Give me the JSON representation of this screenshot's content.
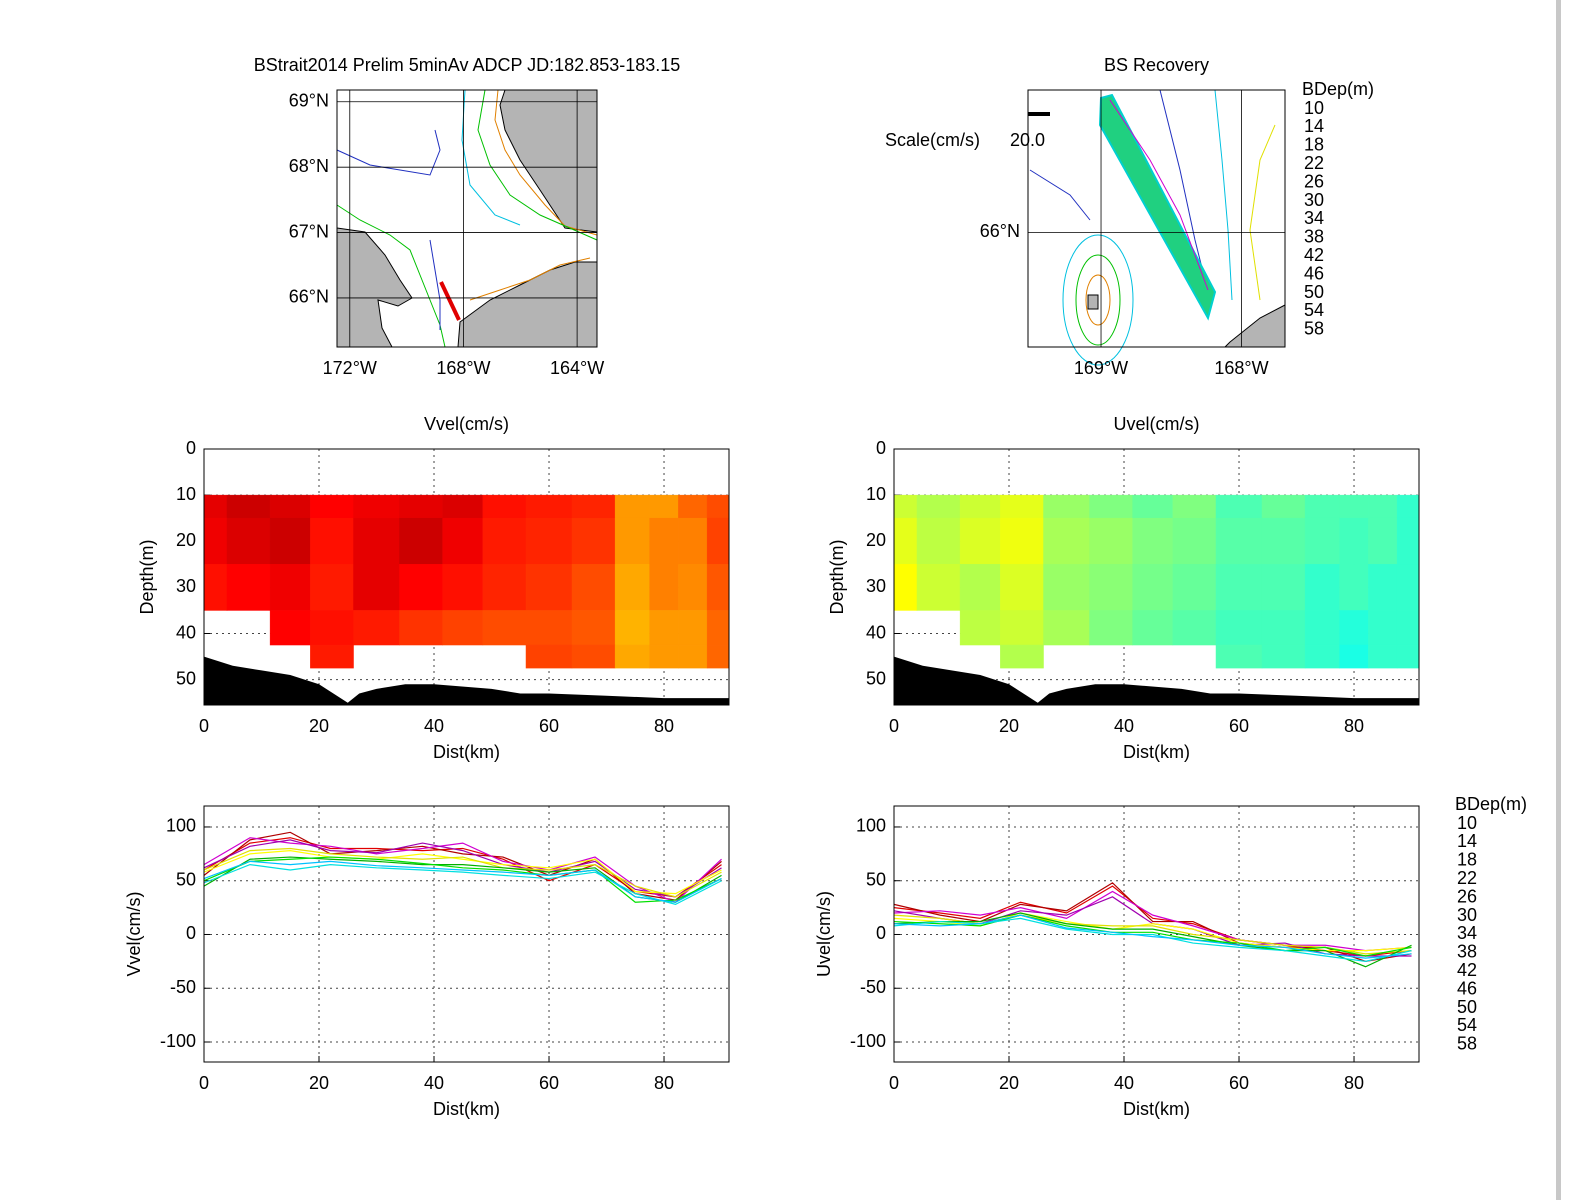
{
  "chart_data": [
    {
      "type": "map",
      "title": "BStrait2014 Prelim 5minAv ADCP JD:182.853-183.15",
      "xlim": [
        -172.45,
        -163.3
      ],
      "ylim": [
        65.25,
        69.18
      ],
      "xticks": [
        {
          "value": -172,
          "label": "172°W"
        },
        {
          "value": -168,
          "label": "168°W"
        },
        {
          "value": -164,
          "label": "164°W"
        }
      ],
      "yticks": [
        {
          "value": 66,
          "label": "66°N"
        },
        {
          "value": 67,
          "label": "67°N"
        },
        {
          "value": 68,
          "label": "68°N"
        },
        {
          "value": 69,
          "label": "69°N"
        }
      ]
    },
    {
      "type": "map",
      "title": "BS Recovery",
      "xlim": [
        -169.52,
        -167.69
      ],
      "ylim": [
        65.67,
        66.41
      ],
      "xticks": [
        {
          "value": -169,
          "label": "169°W"
        },
        {
          "value": -168,
          "label": "168°W"
        }
      ],
      "yticks": [
        {
          "value": 66,
          "label": "66°N"
        }
      ],
      "scale_title": "Scale(cm/s)",
      "scale_value": {
        "value": 20,
        "label": "20.0"
      },
      "legend_title": "BDep(m)"
    },
    {
      "type": "contour",
      "title": "Vvel(cm/s)",
      "xlabel": "Dist(km)",
      "ylabel": "Depth(m)",
      "xlim": [
        0,
        91.3
      ],
      "ylim": [
        55.5,
        0
      ],
      "xticks": [
        0,
        20,
        40,
        60,
        80
      ],
      "yticks": [
        0,
        10,
        20,
        30,
        40,
        50
      ],
      "grid": true,
      "clim": [
        -100,
        100
      ],
      "x": [
        0,
        8,
        15,
        22,
        30,
        38,
        45,
        52,
        60,
        68,
        75,
        80,
        85,
        90
      ],
      "depth": [
        10,
        20,
        30,
        40,
        45
      ],
      "z": [
        [
          80,
          85,
          82,
          75,
          78,
          80,
          82,
          72,
          70,
          68,
          45,
          45,
          55,
          60
        ],
        [
          78,
          82,
          85,
          72,
          80,
          85,
          78,
          70,
          68,
          65,
          45,
          50,
          50,
          62
        ],
        [
          72,
          75,
          78,
          70,
          80,
          75,
          72,
          68,
          65,
          60,
          42,
          50,
          48,
          58
        ],
        [
          null,
          null,
          75,
          72,
          70,
          65,
          62,
          60,
          60,
          58,
          40,
          45,
          45,
          55
        ],
        [
          null,
          null,
          null,
          70,
          null,
          null,
          null,
          null,
          62,
          60,
          42,
          45,
          45,
          55
        ]
      ],
      "bottom": {
        "x": [
          0,
          5,
          10,
          15,
          20,
          25,
          27,
          30,
          35,
          40,
          50,
          55,
          60,
          70,
          80,
          91.3
        ],
        "depth": [
          45,
          47,
          48,
          49,
          51,
          55,
          53,
          52,
          51,
          51,
          52,
          53,
          53,
          53.5,
          54,
          54
        ]
      }
    },
    {
      "type": "contour",
      "title": "Uvel(cm/s)",
      "xlabel": "Dist(km)",
      "ylabel": "Depth(m)",
      "xlim": [
        0,
        91.3
      ],
      "ylim": [
        55.5,
        0
      ],
      "xticks": [
        0,
        20,
        40,
        60,
        80
      ],
      "yticks": [
        0,
        10,
        20,
        30,
        40,
        50
      ],
      "grid": true,
      "clim": [
        -100,
        100
      ],
      "x": [
        0,
        8,
        15,
        22,
        30,
        38,
        45,
        52,
        60,
        68,
        75,
        80,
        85,
        90
      ],
      "depth": [
        10,
        20,
        30,
        40,
        45
      ],
      "z": [
        [
          15,
          10,
          15,
          20,
          5,
          0,
          -5,
          0,
          -10,
          -5,
          -10,
          -10,
          -10,
          -15
        ],
        [
          20,
          12,
          18,
          22,
          8,
          5,
          0,
          -2,
          -8,
          -8,
          -10,
          -12,
          -10,
          -15
        ],
        [
          25,
          15,
          10,
          18,
          5,
          2,
          -2,
          -5,
          -10,
          -10,
          -15,
          -12,
          -15,
          -15
        ],
        [
          null,
          null,
          12,
          15,
          8,
          0,
          -5,
          -8,
          -12,
          -12,
          -15,
          -18,
          -15,
          -15
        ],
        [
          null,
          null,
          null,
          10,
          null,
          null,
          null,
          null,
          -10,
          -12,
          -15,
          -20,
          -15,
          -15
        ]
      ],
      "bottom": {
        "x": [
          0,
          5,
          10,
          15,
          20,
          25,
          27,
          30,
          35,
          40,
          50,
          55,
          60,
          70,
          80,
          91.3
        ],
        "depth": [
          45,
          47,
          48,
          49,
          51,
          55,
          53,
          52,
          51,
          51,
          52,
          53,
          53,
          53.5,
          54,
          54
        ]
      }
    },
    {
      "type": "line",
      "xlabel": "Dist(km)",
      "ylabel": "Vvel(cm/s)",
      "xlim": [
        0,
        91.3
      ],
      "ylim": [
        -118.6,
        119.5
      ],
      "xticks": [
        0,
        20,
        40,
        60,
        80
      ],
      "yticks": [
        -100,
        -50,
        0,
        50,
        100
      ],
      "grid": true,
      "x": [
        0,
        8,
        15,
        22,
        30,
        38,
        45,
        52,
        60,
        68,
        75,
        82,
        90
      ],
      "series": [
        {
          "name": "10",
          "color": "#e00000",
          "values": [
            60,
            85,
            90,
            80,
            80,
            78,
            80,
            70,
            50,
            65,
            40,
            35,
            65
          ]
        },
        {
          "name": "14",
          "color": "#b00000",
          "values": [
            55,
            88,
            95,
            75,
            78,
            82,
            75,
            72,
            55,
            70,
            38,
            32,
            68
          ]
        },
        {
          "name": "18",
          "color": "#d000d0",
          "values": [
            65,
            90,
            85,
            82,
            75,
            80,
            85,
            68,
            60,
            72,
            45,
            30,
            70
          ]
        },
        {
          "name": "22",
          "color": "#a000b0",
          "values": [
            62,
            82,
            88,
            78,
            76,
            85,
            78,
            65,
            58,
            68,
            42,
            35,
            62
          ]
        },
        {
          "name": "26",
          "color": "#ffff00",
          "values": [
            58,
            75,
            78,
            72,
            70,
            75,
            70,
            65,
            62,
            70,
            40,
            38,
            60
          ]
        },
        {
          "name": "30",
          "color": "#e0e000",
          "values": [
            60,
            78,
            80,
            75,
            72,
            70,
            72,
            62,
            60,
            65,
            45,
            35,
            58
          ]
        },
        {
          "name": "34",
          "color": "#00b000",
          "values": [
            45,
            70,
            72,
            70,
            68,
            65,
            65,
            62,
            58,
            62,
            35,
            30,
            55
          ]
        },
        {
          "name": "38",
          "color": "#00e000",
          "values": [
            50,
            68,
            70,
            72,
            70,
            66,
            62,
            60,
            55,
            60,
            30,
            32,
            52
          ]
        },
        {
          "name": "42",
          "color": "#00e0e0",
          "values": [
            48,
            65,
            60,
            65,
            62,
            60,
            58,
            55,
            52,
            58,
            38,
            28,
            50
          ]
        },
        {
          "name": "46",
          "color": "#00c0ff",
          "values": [
            52,
            68,
            65,
            68,
            64,
            62,
            60,
            58,
            55,
            60,
            35,
            30,
            52
          ]
        },
        {
          "name": "50",
          "color": "#0000c0",
          "values": [
            null,
            null,
            null,
            null,
            null,
            null,
            null,
            null,
            null,
            null,
            null,
            null,
            null
          ]
        },
        {
          "name": "54",
          "color": "#000080",
          "values": [
            null,
            null,
            null,
            null,
            null,
            null,
            null,
            null,
            null,
            null,
            null,
            null,
            null
          ]
        },
        {
          "name": "58",
          "color": "#000000",
          "values": [
            null,
            null,
            null,
            null,
            null,
            null,
            null,
            null,
            null,
            null,
            null,
            null,
            null
          ]
        }
      ]
    },
    {
      "type": "line",
      "xlabel": "Dist(km)",
      "ylabel": "Uvel(cm/s)",
      "legend_title": "BDep(m)",
      "xlim": [
        0,
        91.3
      ],
      "ylim": [
        -118.6,
        119.5
      ],
      "xticks": [
        0,
        20,
        40,
        60,
        80
      ],
      "yticks": [
        -100,
        -50,
        0,
        50,
        100
      ],
      "grid": true,
      "x": [
        0,
        8,
        15,
        22,
        30,
        38,
        45,
        52,
        60,
        68,
        75,
        82,
        90
      ],
      "series": [
        {
          "name": "10",
          "color": "#e00000",
          "values": [
            25,
            20,
            15,
            30,
            20,
            45,
            15,
            10,
            -5,
            -10,
            -15,
            -20,
            -15
          ]
        },
        {
          "name": "14",
          "color": "#b00000",
          "values": [
            28,
            18,
            12,
            28,
            22,
            48,
            12,
            12,
            -8,
            -12,
            -12,
            -25,
            -18
          ]
        },
        {
          "name": "18",
          "color": "#d000d0",
          "values": [
            20,
            22,
            18,
            25,
            15,
            40,
            18,
            8,
            -5,
            -10,
            -10,
            -15,
            -12
          ]
        },
        {
          "name": "22",
          "color": "#a000b0",
          "values": [
            22,
            15,
            10,
            22,
            18,
            35,
            10,
            5,
            -10,
            -8,
            -18,
            -20,
            -20
          ]
        },
        {
          "name": "26",
          "color": "#ffff00",
          "values": [
            15,
            12,
            8,
            20,
            12,
            5,
            10,
            5,
            -8,
            -12,
            -15,
            -15,
            -12
          ]
        },
        {
          "name": "30",
          "color": "#e0e000",
          "values": [
            18,
            15,
            10,
            18,
            10,
            8,
            8,
            0,
            -5,
            -10,
            -12,
            -18,
            -15
          ]
        },
        {
          "name": "34",
          "color": "#00b000",
          "values": [
            10,
            12,
            12,
            20,
            10,
            5,
            5,
            -2,
            -10,
            -15,
            -15,
            -30,
            -10
          ]
        },
        {
          "name": "38",
          "color": "#00e000",
          "values": [
            12,
            10,
            8,
            18,
            8,
            2,
            2,
            -5,
            -8,
            -15,
            -12,
            -20,
            -12
          ]
        },
        {
          "name": "42",
          "color": "#00e0e0",
          "values": [
            8,
            12,
            10,
            15,
            5,
            0,
            0,
            -8,
            -12,
            -15,
            -20,
            -25,
            -15
          ]
        },
        {
          "name": "46",
          "color": "#00c0ff",
          "values": [
            10,
            8,
            10,
            18,
            6,
            2,
            -2,
            -5,
            -10,
            -12,
            -18,
            -22,
            -18
          ]
        },
        {
          "name": "50",
          "color": "#0000c0",
          "values": [
            null,
            null,
            null,
            null,
            null,
            null,
            null,
            null,
            null,
            null,
            null,
            null,
            null
          ]
        },
        {
          "name": "54",
          "color": "#000080",
          "values": [
            null,
            null,
            null,
            null,
            null,
            null,
            null,
            null,
            null,
            null,
            null,
            null,
            null
          ]
        },
        {
          "name": "58",
          "color": "#000000",
          "values": [
            null,
            null,
            null,
            null,
            null,
            null,
            null,
            null,
            null,
            null,
            null,
            null,
            null
          ]
        }
      ]
    }
  ]
}
